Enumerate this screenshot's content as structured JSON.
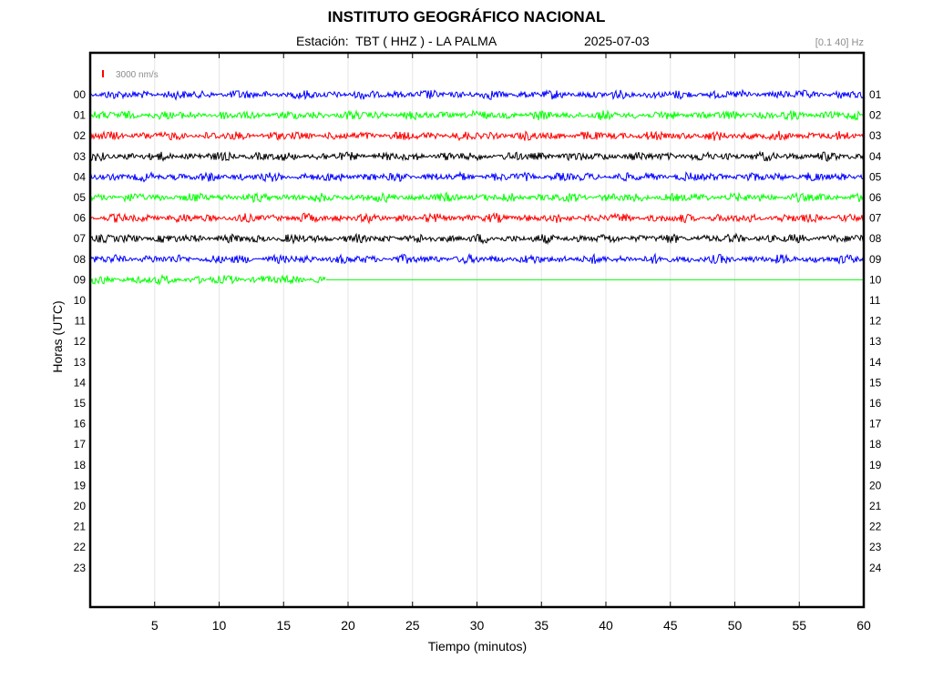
{
  "header": {
    "title": "INSTITUTO GEOGRÁFICO NACIONAL",
    "station": "Estación:  TBT ( HHZ ) - LA PALMA",
    "date": "2025-07-03",
    "filter": "[0.1 40] Hz"
  },
  "chart_data": {
    "type": "line",
    "title": "INSTITUTO GEOGRÁFICO NACIONAL",
    "subtitle": "Estación:  TBT ( HHZ ) - LA PALMA",
    "date": "2025-07-03",
    "filter": "[0.1 40] Hz",
    "xlabel": "Tiempo (minutos)",
    "ylabel": "Horas (UTC)",
    "xlim": [
      0,
      60
    ],
    "x_ticks": [
      5,
      10,
      15,
      20,
      25,
      30,
      35,
      40,
      45,
      50,
      55,
      60
    ],
    "vertical_grid": true,
    "scale_label": "3000 nm/s",
    "scale_color": "#ff0000",
    "left_hour_labels": [
      "00",
      "01",
      "02",
      "03",
      "04",
      "05",
      "06",
      "07",
      "08",
      "09",
      "10",
      "11",
      "12",
      "13",
      "14",
      "15",
      "16",
      "17",
      "18",
      "19",
      "20",
      "21",
      "22",
      "23"
    ],
    "right_hour_labels": [
      "01",
      "02",
      "03",
      "04",
      "05",
      "06",
      "07",
      "08",
      "09",
      "10",
      "11",
      "12",
      "13",
      "14",
      "15",
      "16",
      "17",
      "18",
      "19",
      "20",
      "21",
      "22",
      "23",
      "24"
    ],
    "series": [
      {
        "hour": "00",
        "color": "#0000ff",
        "signal_end_min": 60
      },
      {
        "hour": "01",
        "color": "#00ff00",
        "signal_end_min": 60
      },
      {
        "hour": "02",
        "color": "#ff0000",
        "signal_end_min": 60
      },
      {
        "hour": "03",
        "color": "#000000",
        "signal_end_min": 60
      },
      {
        "hour": "04",
        "color": "#0000ff",
        "signal_end_min": 60
      },
      {
        "hour": "05",
        "color": "#00ff00",
        "signal_end_min": 60
      },
      {
        "hour": "06",
        "color": "#ff0000",
        "signal_end_min": 60
      },
      {
        "hour": "07",
        "color": "#000000",
        "signal_end_min": 60
      },
      {
        "hour": "08",
        "color": "#0000ff",
        "signal_end_min": 60
      },
      {
        "hour": "09",
        "color": "#00ff00",
        "signal_end_min": 18.3,
        "line_end_min": 60
      }
    ]
  }
}
